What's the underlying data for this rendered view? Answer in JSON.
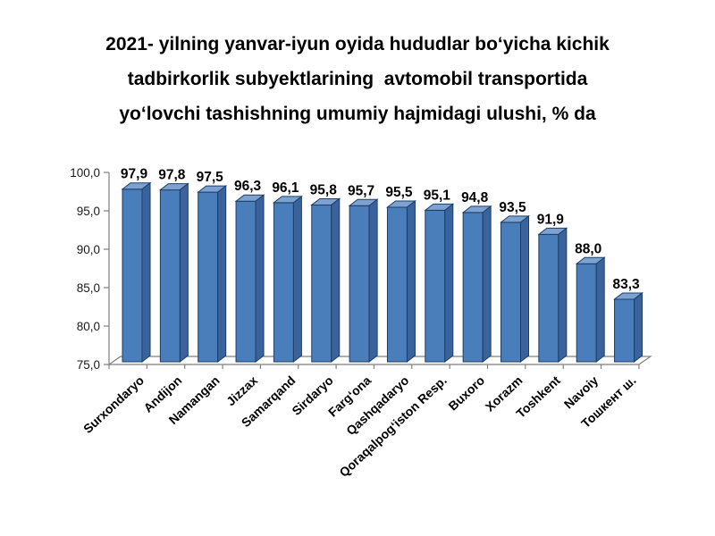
{
  "title": {
    "lines": [
      "2021- yilning yanvar-iyun oyida hududlar bo‘yicha kichik",
      "tadbirkorlik subyektlarining  avtomobil transportida",
      "yo‘lovchi tashishning umumiy hajmidagi ulushi, % da"
    ]
  },
  "chart_data": {
    "type": "bar",
    "style": "3d-column",
    "title": "2021- yilning yanvar-iyun oyida hududlar bo‘yicha kichik tadbirkorlik subyektlarining  avtomobil transportida yo‘lovchi tashishning umumiy hajmidagi ulushi, % da",
    "categories": [
      "Surxondaryo",
      "Andijon",
      "Namangan",
      "Jizzax",
      "Samarqand",
      "Sirdaryo",
      "Farg‘ona",
      "Qashqadaryo",
      "Qoraqalpog‘iston Resp.",
      "Buxoro",
      "Xorazm",
      "Toshkent",
      "Navoiy",
      "Тошкент ш."
    ],
    "values": [
      97.9,
      97.8,
      97.5,
      96.3,
      96.1,
      95.8,
      95.7,
      95.5,
      95.1,
      94.8,
      93.5,
      91.9,
      88.0,
      83.3
    ],
    "value_labels": [
      "97,9",
      "97,8",
      "97,5",
      "96,3",
      "96,1",
      "95,8",
      "95,7",
      "95,5",
      "95,1",
      "94,8",
      "93,5",
      "91,9",
      "88,0",
      "83,3"
    ],
    "xlabel": "",
    "ylabel": "",
    "ylim": [
      75,
      100
    ],
    "ytick_step": 5,
    "ytick_labels": [
      "75,0",
      "80,0",
      "85,0",
      "90,0",
      "95,0",
      "100,0"
    ],
    "decimal_separator": ",",
    "grid": false,
    "legend": false,
    "colors": {
      "bar_front": "#4a7ebb",
      "bar_top": "#7da2d1",
      "bar_side": "#3a639e",
      "bar_outline": "#1c3e66",
      "axis": "#808080",
      "floor_fill": "#fdfdfd",
      "text": "#000000",
      "tick_text": "#1a1a1a",
      "background": "#ffffff"
    }
  }
}
